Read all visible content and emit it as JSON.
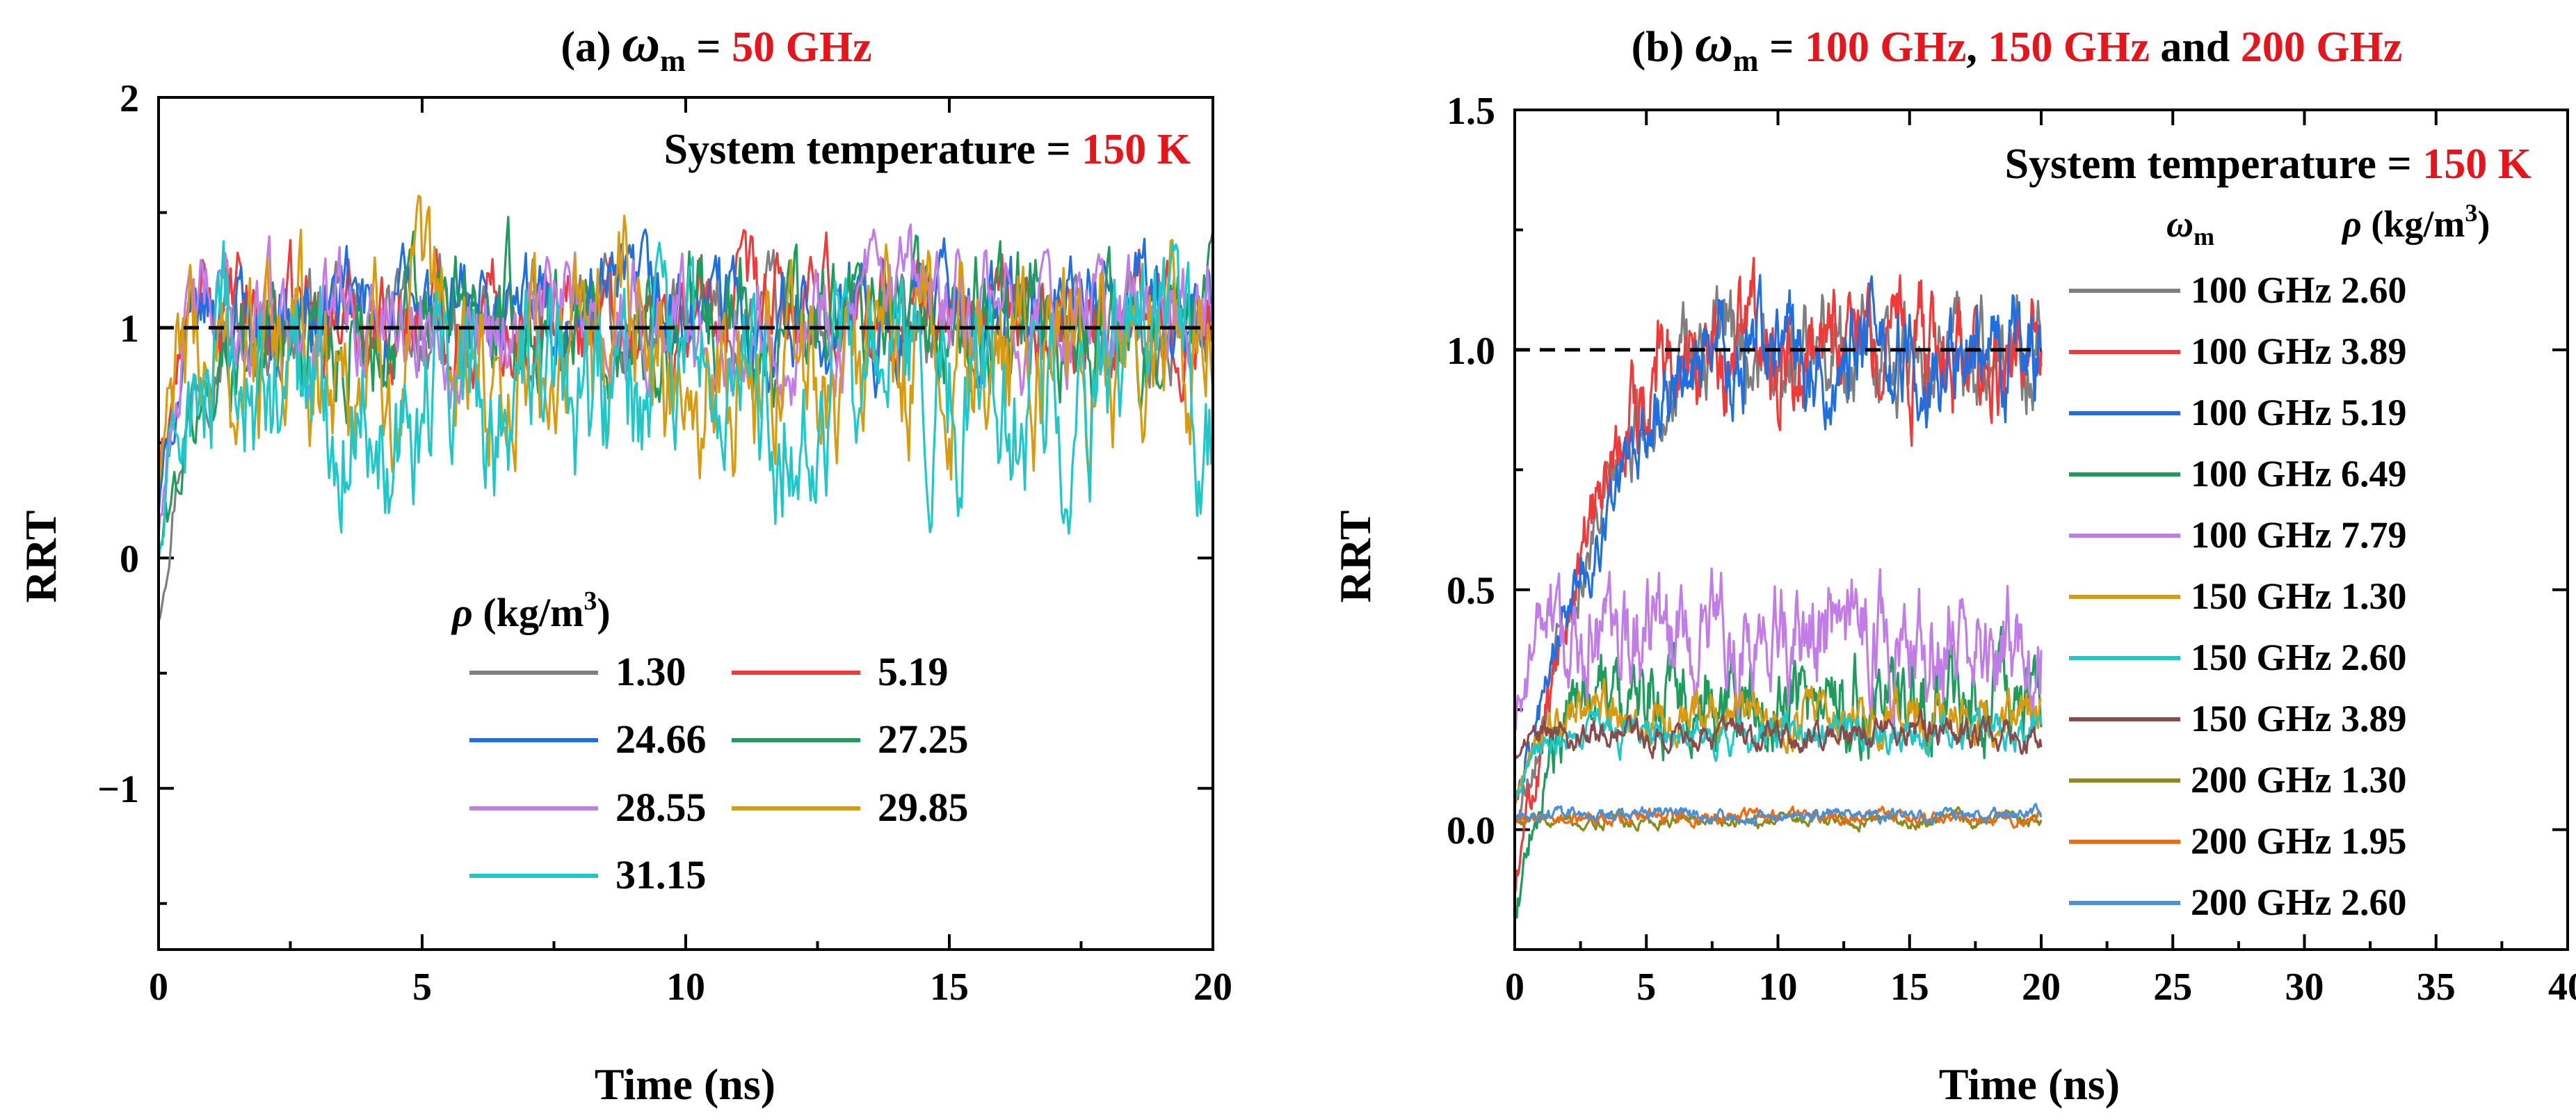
{
  "chart_data": [
    {
      "type": "line",
      "panel": "a",
      "title_prefix": "(a) ",
      "title_symbol": "ω",
      "title_subscript": "m",
      "title_equals": " = ",
      "title_value": "50 GHz",
      "annotation_label": "System temperature = ",
      "annotation_value": "150 K",
      "xlabel": "Time (ns)",
      "ylabel": "RRT",
      "xlim": [
        0,
        20
      ],
      "ylim": [
        -1.7,
        2
      ],
      "xticks": [
        "0",
        "5",
        "10",
        "15",
        "20"
      ],
      "yticks": [
        "2",
        "1",
        "0",
        "−1"
      ],
      "reference_line_y": 1,
      "legend_title": "ρ (kg/m³)",
      "legend_title_symbol": "ρ",
      "legend_title_unit": " (kg/m",
      "legend_title_sup": "3",
      "legend_title_close": ")",
      "series": [
        {
          "name": "1.30",
          "color": "#7f7f7f",
          "start": -0.25,
          "plateau_time": 1.2,
          "mean": 1.0,
          "amp": 0.18
        },
        {
          "name": "5.19",
          "color": "#f03a3a",
          "start": 0.3,
          "plateau_time": 0.8,
          "mean": 1.05,
          "amp": 0.2
        },
        {
          "name": "24.66",
          "color": "#1f6fe0",
          "start": 0.2,
          "plateau_time": 1.0,
          "mean": 1.05,
          "amp": 0.2
        },
        {
          "name": "27.25",
          "color": "#1d9c5b",
          "start": 0.0,
          "plateau_time": 2.0,
          "mean": 1.0,
          "amp": 0.25
        },
        {
          "name": "28.55",
          "color": "#c27ce8",
          "start": 0.1,
          "plateau_time": 0.8,
          "mean": 1.05,
          "amp": 0.22
        },
        {
          "name": "29.85",
          "color": "#d99a0e",
          "start": 0.3,
          "plateau_time": 0.6,
          "mean": 0.85,
          "amp": 0.35
        },
        {
          "name": "31.15",
          "color": "#1fc8c8",
          "start": 0.0,
          "plateau_time": 0.8,
          "mean": 0.7,
          "amp": 0.35
        }
      ]
    },
    {
      "type": "line",
      "panel": "b",
      "title_prefix": "(b) ",
      "title_symbol": "ω",
      "title_subscript": "m",
      "title_equals": " = ",
      "title_value_1": "100 GHz",
      "title_sep_1": ", ",
      "title_value_2": "150 GHz",
      "title_sep_2": " and ",
      "title_value_3": "200 GHz",
      "annotation_label": "System temperature = ",
      "annotation_value": "150 K",
      "xlabel": "Time (ns)",
      "ylabel": "RRT",
      "xlim": [
        0,
        40
      ],
      "ylim": [
        -0.25,
        1.5
      ],
      "xticks": [
        "0",
        "5",
        "10",
        "15",
        "20",
        "25",
        "30",
        "35",
        "40"
      ],
      "yticks": [
        "1.5",
        "1.0",
        "0.5",
        "0.0"
      ],
      "reference_line_y": 1.0,
      "legend_header_col1_symbol": "ω",
      "legend_header_col1_sub": "m",
      "legend_header_col2_symbol": "ρ",
      "legend_header_col2_unit": " (kg/m",
      "legend_header_col2_sup": "3",
      "legend_header_col2_close": ")",
      "series": [
        {
          "name": "100 GHz 2.60",
          "color": "#7f7f7f",
          "start": 0.0,
          "plateau_time": 8.0,
          "mean": 1.0,
          "amp": 0.09
        },
        {
          "name": "100 GHz 3.89",
          "color": "#f03a3a",
          "start": -0.15,
          "plateau_time": 6.5,
          "mean": 1.0,
          "amp": 0.1
        },
        {
          "name": "100 GHz 5.19",
          "color": "#1f6fe0",
          "start": 0.05,
          "plateau_time": 8.5,
          "mean": 1.0,
          "amp": 0.09
        },
        {
          "name": "100 GHz 6.49",
          "color": "#1d9c5b",
          "start": -0.2,
          "plateau_time": 3.0,
          "mean": 0.28,
          "amp": 0.08
        },
        {
          "name": "100 GHz 7.79",
          "color": "#c27ce8",
          "start": 0.2,
          "plateau_time": 1.5,
          "mean": 0.4,
          "amp": 0.1
        },
        {
          "name": "150 GHz 1.30",
          "color": "#d99a0e",
          "start": 0.05,
          "plateau_time": 2.0,
          "mean": 0.24,
          "amp": 0.04
        },
        {
          "name": "150 GHz 2.60",
          "color": "#1fc8c8",
          "start": 0.05,
          "plateau_time": 1.5,
          "mean": 0.2,
          "amp": 0.03
        },
        {
          "name": "150 GHz 3.89",
          "color": "#8b4a4a",
          "start": 0.15,
          "plateau_time": 1.0,
          "mean": 0.2,
          "amp": 0.025
        },
        {
          "name": "200 GHz 1.30",
          "color": "#8b8b1a",
          "start": 0.02,
          "plateau_time": 0.5,
          "mean": 0.02,
          "amp": 0.012
        },
        {
          "name": "200 GHz 1.95",
          "color": "#f26a10",
          "start": 0.02,
          "plateau_time": 0.5,
          "mean": 0.025,
          "amp": 0.012
        },
        {
          "name": "200 GHz 2.60",
          "color": "#4a90d9",
          "start": 0.03,
          "plateau_time": 0.5,
          "mean": 0.03,
          "amp": 0.012
        }
      ],
      "series_tmax": 20
    }
  ]
}
